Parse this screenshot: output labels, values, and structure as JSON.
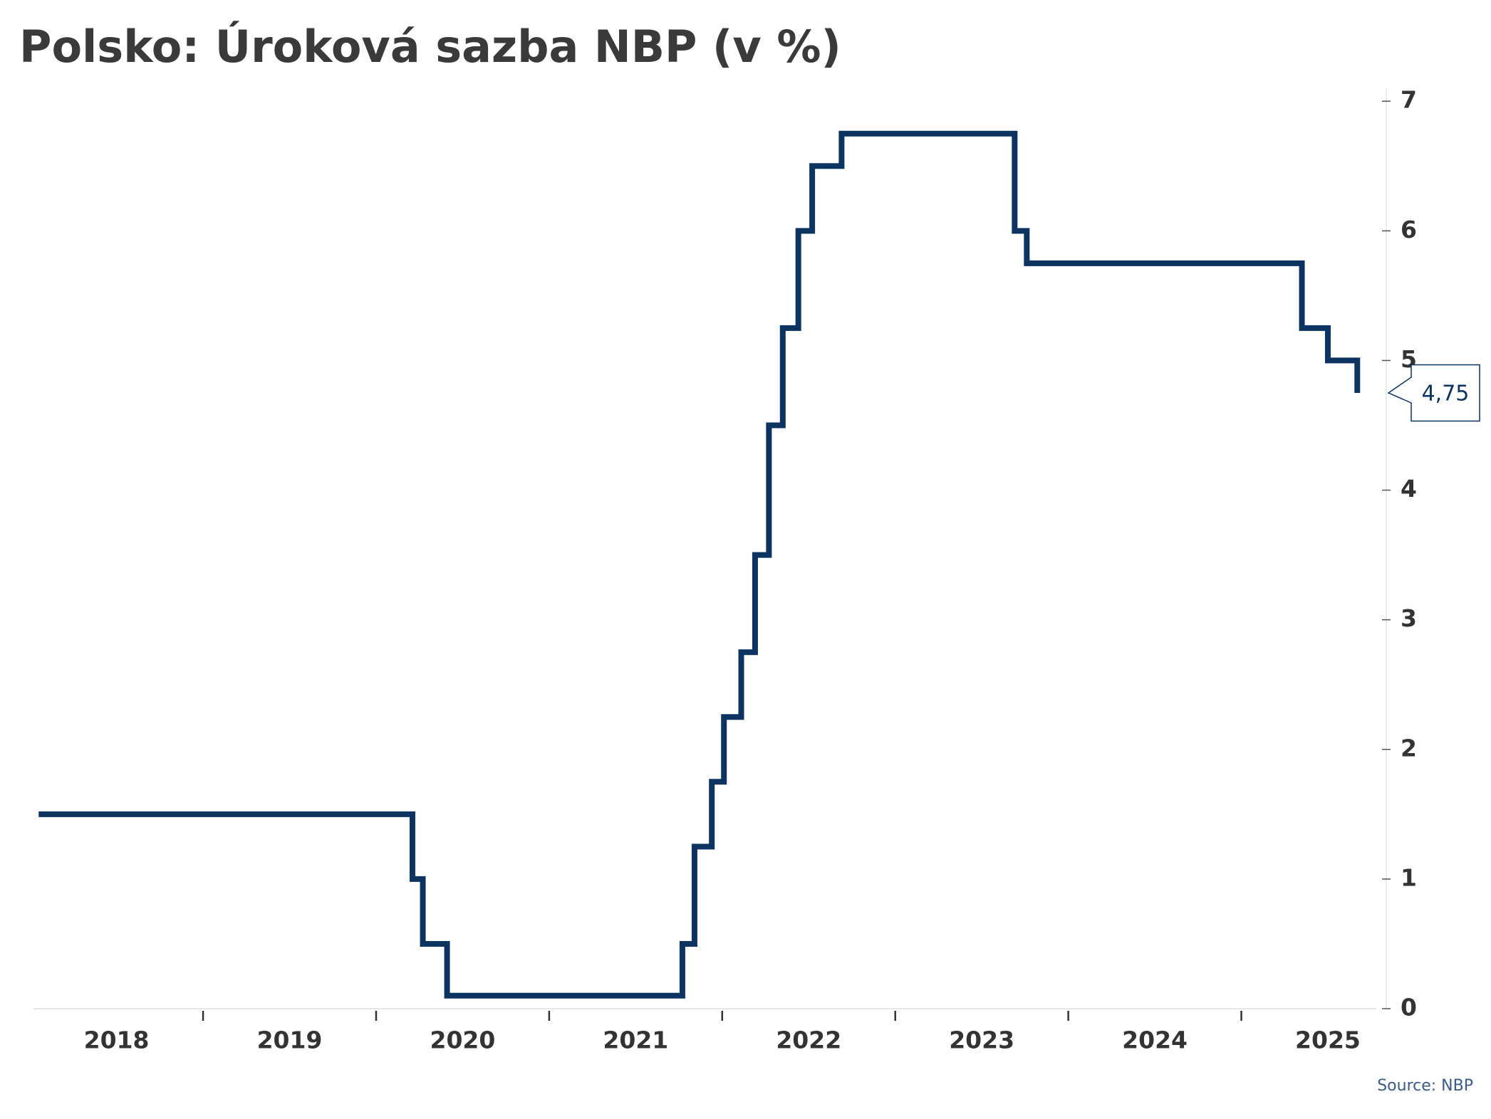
{
  "chart_data": {
    "type": "line",
    "title": "Polsko: Úroková sazba NBP (v %)",
    "source": "Source: NBP",
    "step": "post",
    "y_axis_side": "right",
    "xlim": [
      2018.02,
      2025.78
    ],
    "xticks": [
      {
        "value": 2018.5,
        "label": "2018"
      },
      {
        "value": 2019.5,
        "label": "2019"
      },
      {
        "value": 2020.5,
        "label": "2020"
      },
      {
        "value": 2021.5,
        "label": "2021"
      },
      {
        "value": 2022.5,
        "label": "2022"
      },
      {
        "value": 2023.5,
        "label": "2023"
      },
      {
        "value": 2024.5,
        "label": "2024"
      },
      {
        "value": 2025.5,
        "label": "2025"
      }
    ],
    "ylim": [
      0,
      7.1
    ],
    "yticks": [
      0,
      1,
      2,
      3,
      4,
      5,
      6,
      7
    ],
    "x": [
      2018.05,
      2020.21,
      2020.27,
      2020.41,
      2021.77,
      2021.84,
      2021.94,
      2022.01,
      2022.11,
      2022.19,
      2022.27,
      2022.35,
      2022.44,
      2022.52,
      2022.69,
      2023.69,
      2023.76,
      2025.35,
      2025.5,
      2025.67
    ],
    "series": [
      {
        "name": "Úroková sazba NBP",
        "color": "#0d3361",
        "values": [
          1.5,
          1.0,
          0.5,
          0.1,
          0.5,
          1.25,
          1.75,
          2.25,
          2.75,
          3.5,
          4.5,
          5.25,
          6.0,
          6.5,
          6.75,
          6.0,
          5.75,
          5.25,
          5.0,
          4.75
        ],
        "end_label": "4,75"
      }
    ]
  }
}
